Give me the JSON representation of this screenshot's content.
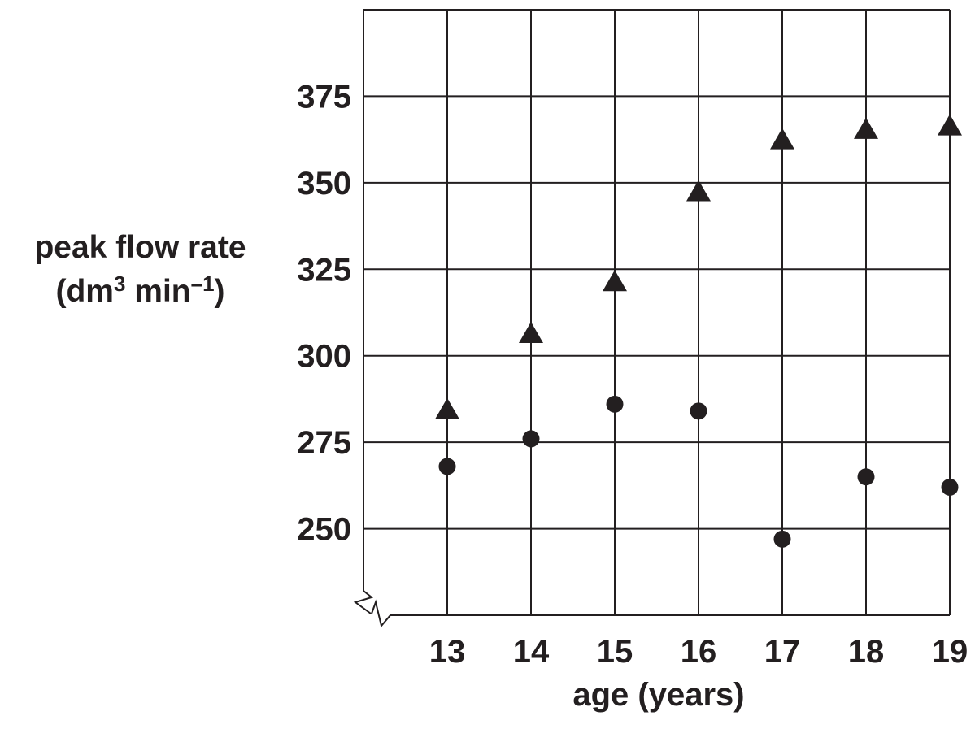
{
  "chart_data": {
    "type": "scatter",
    "title": "",
    "xlabel": "age (years)",
    "ylabel_line1": "peak flow rate",
    "ylabel_unit_prefix": "(dm",
    "ylabel_unit_exp1": "3",
    "ylabel_unit_mid": " min",
    "ylabel_unit_exp2": "–1",
    "ylabel_unit_suffix": ")",
    "x": [
      13,
      14,
      15,
      16,
      17,
      18,
      19
    ],
    "x_ticks": [
      "13",
      "14",
      "15",
      "16",
      "17",
      "18",
      "19"
    ],
    "y_ticks": [
      "250",
      "275",
      "300",
      "325",
      "350",
      "375"
    ],
    "ylim": [
      225,
      400
    ],
    "xlim": [
      12,
      19
    ],
    "axis_break": true,
    "grid": true,
    "series": [
      {
        "marker": "triangle",
        "values": [
          284,
          306,
          321,
          347,
          362,
          365,
          366
        ]
      },
      {
        "marker": "circle",
        "values": [
          268,
          276,
          286,
          284,
          247,
          265,
          262
        ]
      }
    ]
  }
}
